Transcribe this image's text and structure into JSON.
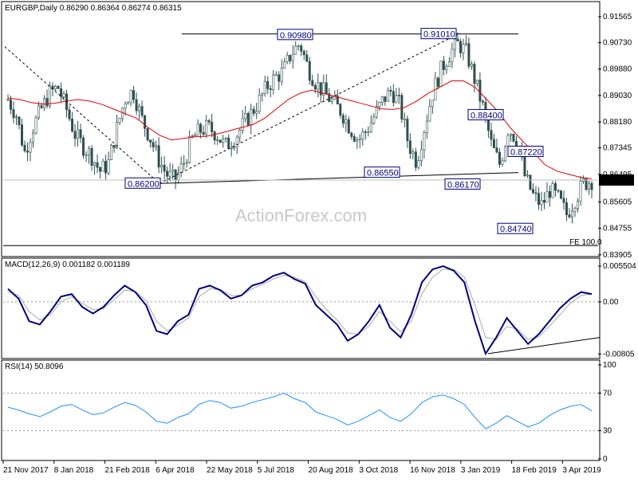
{
  "chart_data": [
    {
      "type": "candlestick",
      "title": "EURGBP,Daily  0.86290 0.86364 0.86274 0.86315",
      "current_price_label": "0.86315",
      "fib_label": "FE 100.0",
      "watermark": "ActionForex.com",
      "ylim": [
        0.839,
        0.92
      ],
      "y_ticks": [
        "0.91565",
        "0.90730",
        "0.89880",
        "0.89030",
        "0.88180",
        "0.87345",
        "0.86495",
        "0.85605",
        "0.84755",
        "0.83905"
      ],
      "x_ticks": [
        "21 Nov 2017",
        "8 Jan 2018",
        "21 Feb 2018",
        "6 Apr 2018",
        "22 May 2018",
        "5 Jul 2018",
        "20 Aug 2018",
        "3 Oct 2018",
        "16 Nov 2018",
        "3 Jan 2019",
        "18 Feb 2019",
        "3 Apr 2019"
      ],
      "price_labels": [
        {
          "text": "0.90980",
          "value": 0.9098
        },
        {
          "text": "0.91010",
          "value": 0.9101
        },
        {
          "text": "0.88400",
          "value": 0.884
        },
        {
          "text": "0.87220",
          "value": 0.8722
        },
        {
          "text": "0.86550",
          "value": 0.8655
        },
        {
          "text": "0.86200",
          "value": 0.862
        },
        {
          "text": "0.86170",
          "value": 0.8617
        },
        {
          "text": "0.84740",
          "value": 0.8474
        }
      ],
      "price_path": [
        0.889,
        0.884,
        0.872,
        0.88,
        0.886,
        0.891,
        0.893,
        0.886,
        0.878,
        0.874,
        0.871,
        0.866,
        0.868,
        0.879,
        0.889,
        0.892,
        0.883,
        0.877,
        0.87,
        0.865,
        0.863,
        0.868,
        0.876,
        0.879,
        0.88,
        0.878,
        0.874,
        0.876,
        0.88,
        0.884,
        0.888,
        0.893,
        0.896,
        0.898,
        0.904,
        0.907,
        0.899,
        0.894,
        0.891,
        0.888,
        0.885,
        0.88,
        0.876,
        0.879,
        0.884,
        0.889,
        0.892,
        0.887,
        0.875,
        0.869,
        0.881,
        0.892,
        0.899,
        0.904,
        0.907,
        0.904,
        0.895,
        0.886,
        0.874,
        0.868,
        0.88,
        0.876,
        0.864,
        0.858,
        0.855,
        0.86,
        0.857,
        0.852,
        0.857,
        0.862,
        0.863
      ],
      "ma_path": [
        0.8895,
        0.889,
        0.888,
        0.8875,
        0.8878,
        0.8885,
        0.889,
        0.8885,
        0.8875,
        0.886,
        0.8845,
        0.883,
        0.88,
        0.8775,
        0.876,
        0.8765,
        0.877,
        0.8772,
        0.878,
        0.879,
        0.88,
        0.881,
        0.883,
        0.886,
        0.889,
        0.891,
        0.892,
        0.891,
        0.89,
        0.889,
        0.888,
        0.887,
        0.886,
        0.8858,
        0.8865,
        0.8885,
        0.891,
        0.893,
        0.895,
        0.895,
        0.893,
        0.889,
        0.885,
        0.88,
        0.876,
        0.872,
        0.868,
        0.866,
        0.865,
        0.864,
        0.8635
      ]
    },
    {
      "type": "line",
      "title": "MACD(12,26,9) 0.001182 0.001189",
      "ylim": [
        -0.0085,
        0.006
      ],
      "y_ticks": [
        "0.005504",
        "0.00",
        "-0.00805"
      ],
      "series": [
        {
          "values": [
            0.002,
            0.0005,
            -0.003,
            -0.0035,
            -0.0015,
            0.0008,
            0.0012,
            -0.0008,
            -0.0018,
            -0.0008,
            0.001,
            0.0025,
            0.0015,
            -0.0005,
            -0.0045,
            -0.005,
            -0.003,
            -0.002,
            0.002,
            0.0025,
            0.0018,
            0.0005,
            0.001,
            0.0025,
            0.003,
            0.004,
            0.0045,
            0.0035,
            0.0028,
            -0.0005,
            -0.002,
            -0.0035,
            -0.006,
            -0.005,
            -0.003,
            -0.0005,
            -0.004,
            -0.0055,
            -0.002,
            0.003,
            0.005,
            0.0055,
            0.0048,
            0.003,
            -0.003,
            -0.008,
            -0.0055,
            -0.0025,
            -0.0045,
            -0.0065,
            -0.005,
            -0.003,
            -0.001,
            0.0005,
            0.0015,
            0.0012
          ]
        },
        {
          "values": [
            0.0015,
            0.001,
            -0.0015,
            -0.0028,
            -0.002,
            0.0,
            0.0008,
            -0.0002,
            -0.0012,
            -0.001,
            0.0003,
            0.0018,
            0.0016,
            0.0002,
            -0.003,
            -0.0045,
            -0.0036,
            -0.0025,
            0.0008,
            0.002,
            0.0019,
            0.001,
            0.001,
            0.002,
            0.0027,
            0.0035,
            0.0041,
            0.0038,
            0.0031,
            0.0008,
            -0.0012,
            -0.0028,
            -0.0048,
            -0.005,
            -0.0038,
            -0.0015,
            -0.003,
            -0.0046,
            -0.003,
            0.0012,
            0.0038,
            0.005,
            0.005,
            0.0038,
            -0.0005,
            -0.0055,
            -0.0058,
            -0.0038,
            -0.0042,
            -0.0058,
            -0.0054,
            -0.0038,
            -0.002,
            -0.0002,
            0.001,
            0.0012
          ]
        }
      ]
    },
    {
      "type": "line",
      "title": "RSI(14) 50.8096",
      "ylim": [
        0,
        100
      ],
      "y_ticks": [
        "100",
        "70",
        "30",
        "0"
      ],
      "series": [
        {
          "values": [
            55,
            52,
            48,
            45,
            50,
            56,
            58,
            52,
            47,
            49,
            55,
            60,
            57,
            50,
            40,
            38,
            44,
            48,
            58,
            62,
            60,
            54,
            56,
            60,
            63,
            66,
            70,
            64,
            60,
            50,
            46,
            42,
            36,
            40,
            46,
            52,
            44,
            40,
            48,
            60,
            66,
            68,
            64,
            58,
            44,
            32,
            38,
            46,
            40,
            34,
            38,
            46,
            52,
            56,
            58,
            51
          ]
        }
      ]
    }
  ]
}
